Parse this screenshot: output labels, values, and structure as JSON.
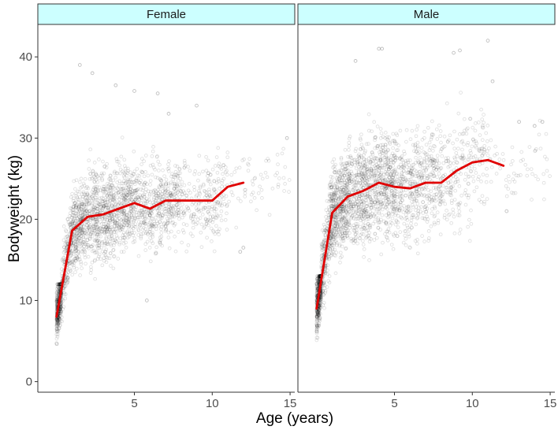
{
  "chart_data": {
    "type": "scatter",
    "xlabel": "Age (years)",
    "ylabel": "Bodyweight (kg)",
    "xlim": [
      -1.2,
      15.3
    ],
    "ylim": [
      -1.3,
      44
    ],
    "x_ticks": [
      5,
      10,
      15
    ],
    "y_ticks": [
      0,
      10,
      20,
      30,
      40
    ],
    "grid": false,
    "point_color": "#000000",
    "point_alpha": 0.12,
    "line_color": "#e00000",
    "strip_fill": "#ccffff",
    "panels": [
      {
        "strip_label": "Female",
        "trend": {
          "x": [
            0,
            1,
            2,
            3,
            4,
            5,
            6,
            7,
            8,
            9,
            10,
            11,
            12
          ],
          "y": [
            8.0,
            18.6,
            20.3,
            20.6,
            21.3,
            22.0,
            21.3,
            22.3,
            22.3,
            22.3,
            22.3,
            24.0,
            24.5
          ]
        },
        "scatter_bands": [
          {
            "x": [
              0.0,
              0.3
            ],
            "y_range": [
              1.0,
              12.0
            ],
            "n": 350
          },
          {
            "x": [
              0.3,
              0.8
            ],
            "y_range": [
              6.0,
              20.0
            ],
            "n": 140
          },
          {
            "x": [
              0.8,
              2.0
            ],
            "y_range": [
              12.0,
              28.5
            ],
            "n": 380
          },
          {
            "x": [
              2.0,
              5.0
            ],
            "y_range": [
              12.5,
              32.0
            ],
            "n": 750
          },
          {
            "x": [
              5.0,
              8.0
            ],
            "y_range": [
              14.0,
              32.0
            ],
            "n": 480
          },
          {
            "x": [
              8.0,
              11.0
            ],
            "y_range": [
              14.5,
              33.0
            ],
            "n": 230
          },
          {
            "x": [
              11.0,
              15.0
            ],
            "y_range": [
              16.0,
              30.0
            ],
            "n": 60
          }
        ],
        "outliers": [
          {
            "x": 1.5,
            "y": 39.0
          },
          {
            "x": 2.3,
            "y": 38.0
          },
          {
            "x": 3.8,
            "y": 36.5
          },
          {
            "x": 5.0,
            "y": 35.8
          },
          {
            "x": 5.8,
            "y": 10.0
          },
          {
            "x": 6.5,
            "y": 35.5
          },
          {
            "x": 7.2,
            "y": 33.0
          },
          {
            "x": 9.0,
            "y": 34.0
          },
          {
            "x": 11.8,
            "y": 16.0
          },
          {
            "x": 12.0,
            "y": 16.5
          },
          {
            "x": 14.8,
            "y": 30.0
          }
        ]
      },
      {
        "strip_label": "Male",
        "trend": {
          "x": [
            0,
            1,
            2,
            3,
            4,
            5,
            6,
            7,
            8,
            9,
            10,
            11,
            12
          ],
          "y": [
            9.0,
            20.8,
            22.8,
            23.5,
            24.5,
            24.0,
            23.8,
            24.5,
            24.5,
            26.0,
            27.0,
            27.3,
            26.6
          ]
        },
        "scatter_bands": [
          {
            "x": [
              0.0,
              0.3
            ],
            "y_range": [
              1.0,
              13.0
            ],
            "n": 420
          },
          {
            "x": [
              0.3,
              0.8
            ],
            "y_range": [
              7.0,
              23.0
            ],
            "n": 170
          },
          {
            "x": [
              0.8,
              2.0
            ],
            "y_range": [
              12.0,
              31.0
            ],
            "n": 470
          },
          {
            "x": [
              2.0,
              5.0
            ],
            "y_range": [
              13.0,
              36.0
            ],
            "n": 820
          },
          {
            "x": [
              5.0,
              8.0
            ],
            "y_range": [
              14.0,
              36.0
            ],
            "n": 480
          },
          {
            "x": [
              8.0,
              11.0
            ],
            "y_range": [
              14.0,
              38.0
            ],
            "n": 230
          },
          {
            "x": [
              11.0,
              15.0
            ],
            "y_range": [
              17.0,
              34.0
            ],
            "n": 60
          }
        ],
        "outliers": [
          {
            "x": 2.5,
            "y": 39.5
          },
          {
            "x": 4.0,
            "y": 41.0
          },
          {
            "x": 4.2,
            "y": 41.0
          },
          {
            "x": 8.8,
            "y": 40.5
          },
          {
            "x": 9.2,
            "y": 40.8
          },
          {
            "x": 11.0,
            "y": 42.0
          },
          {
            "x": 11.3,
            "y": 37.0
          },
          {
            "x": 5.8,
            "y": 21.0
          },
          {
            "x": 13.0,
            "y": 32.0
          },
          {
            "x": 14.0,
            "y": 31.5
          },
          {
            "x": 14.5,
            "y": 32.0
          },
          {
            "x": 12.2,
            "y": 21.0
          }
        ]
      }
    ]
  }
}
